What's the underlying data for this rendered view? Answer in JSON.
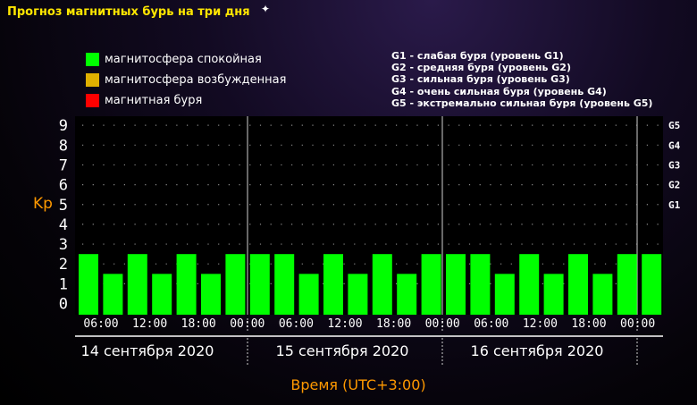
{
  "title": "Прогноз магнитных бурь на три дня",
  "legend": [
    {
      "label": "магнитосфера спокойная",
      "color": "#00ff00"
    },
    {
      "label": "магнитосфера возбужденная",
      "color": "#e0b000"
    },
    {
      "label": "магнитная буря",
      "color": "#ff0000"
    }
  ],
  "g_legend": [
    "G1 - слабая буря (уровень G1)",
    "G2 - средняя буря (уровень G2)",
    "G3 - сильная буря (уровень G3)",
    "G4 - очень сильная буря (уровень G4)",
    "G5 - экстремально сильная буря (уровень G5)"
  ],
  "chart_data": {
    "type": "bar",
    "ylabel": "Kp",
    "xlabel": "Время (UTC+3:00)",
    "ylim": [
      0,
      9
    ],
    "y_ticks": [
      "0",
      "1",
      "2",
      "3",
      "4",
      "5",
      "6",
      "7",
      "8",
      "9"
    ],
    "right_ticks": [
      {
        "value": 5,
        "label": "G1"
      },
      {
        "value": 6,
        "label": "G2"
      },
      {
        "value": 7,
        "label": "G3"
      },
      {
        "value": 8,
        "label": "G4"
      },
      {
        "value": 9,
        "label": "G5"
      }
    ],
    "x_tick_labels": [
      "06:00",
      "12:00",
      "18:00",
      "00:00",
      "06:00",
      "12:00",
      "18:00",
      "00:00",
      "06:00",
      "12:00",
      "18:00",
      "00:00"
    ],
    "days": [
      "14 сентября 2020",
      "15 сентября 2020",
      "16 сентября 2020"
    ],
    "values": [
      2,
      1,
      2,
      1,
      2,
      1,
      2,
      2,
      2,
      1,
      2,
      1,
      2,
      1,
      2,
      2,
      2,
      1,
      2,
      1,
      2,
      1,
      2,
      2
    ],
    "bar_color": "#00ff00",
    "grid": "dotted"
  }
}
